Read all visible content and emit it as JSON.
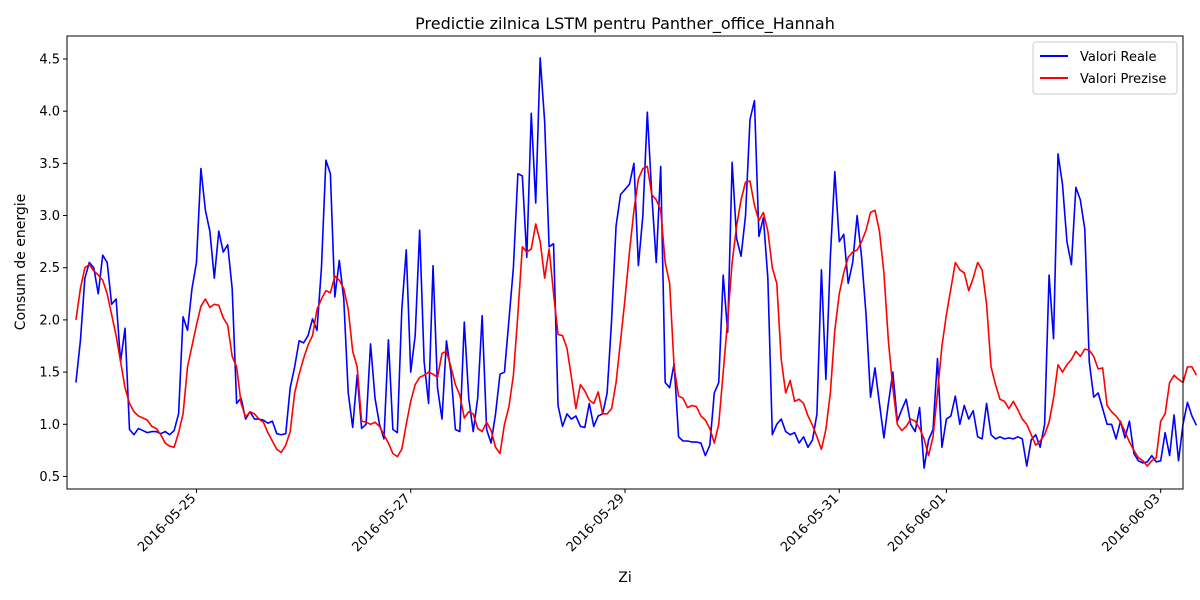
{
  "chart_data": {
    "type": "line",
    "title": "Predictie zilnica LSTM pentru Panther_office_Hannah",
    "xlabel": "Zi",
    "ylabel": "Consum de energie",
    "xlim": [
      "2016-05-23T19:00",
      "2016-06-03T05:00"
    ],
    "ylim": [
      0.38,
      4.72
    ],
    "yticks": [
      0.5,
      1.0,
      1.5,
      2.0,
      2.5,
      3.0,
      3.5,
      4.0,
      4.5
    ],
    "xticks": [
      "2016-05-25",
      "2016-05-27",
      "2016-05-29",
      "2016-05-31",
      "2016-06-01",
      "2016-06-03"
    ],
    "x_start": "2016-05-23T21:00",
    "x_step_hours": 1,
    "grid": false,
    "legend_position": "top-right",
    "series": [
      {
        "name": "Valori Reale",
        "color": "#0000ff",
        "values": [
          1.4,
          1.8,
          2.4,
          2.55,
          2.5,
          2.25,
          2.62,
          2.55,
          2.15,
          2.2,
          1.6,
          1.92,
          0.95,
          0.9,
          0.96,
          0.94,
          0.92,
          0.93,
          0.93,
          0.91,
          0.93,
          0.9,
          0.94,
          1.1,
          2.03,
          1.9,
          2.3,
          2.55,
          3.45,
          3.05,
          2.85,
          2.4,
          2.85,
          2.65,
          2.72,
          2.3,
          1.2,
          1.25,
          1.05,
          1.12,
          1.05,
          1.05,
          1.04,
          1.01,
          1.03,
          0.91,
          0.9,
          0.91,
          1.35,
          1.55,
          1.8,
          1.78,
          1.85,
          2.01,
          1.9,
          2.5,
          3.53,
          3.4,
          2.22,
          2.57,
          2.2,
          1.3,
          0.97,
          1.47,
          0.96,
          1.0,
          1.77,
          1.25,
          1.0,
          0.86,
          1.81,
          0.95,
          0.92,
          2.1,
          2.67,
          1.5,
          1.85,
          2.86,
          1.6,
          1.2,
          2.52,
          1.35,
          1.05,
          1.8,
          1.5,
          0.95,
          0.93,
          1.98,
          1.25,
          0.93,
          1.25,
          2.04,
          0.95,
          0.82,
          1.1,
          1.48,
          1.5,
          2.0,
          2.5,
          3.4,
          3.38,
          2.6,
          3.98,
          3.12,
          4.51,
          3.9,
          2.7,
          2.73,
          1.18,
          0.98,
          1.1,
          1.05,
          1.08,
          0.98,
          0.97,
          1.2,
          0.98,
          1.08,
          1.1,
          1.3,
          2.0,
          2.9,
          3.2,
          3.25,
          3.3,
          3.5,
          2.52,
          3.0,
          3.99,
          3.2,
          2.55,
          3.47,
          1.4,
          1.35,
          1.58,
          0.88,
          0.84,
          0.84,
          0.83,
          0.83,
          0.82,
          0.7,
          0.8,
          1.3,
          1.4,
          2.43,
          1.88,
          3.51,
          2.78,
          2.61,
          3.0,
          3.92,
          4.1,
          2.8,
          2.98,
          2.4,
          0.9,
          1.0,
          1.05,
          0.93,
          0.9,
          0.92,
          0.82,
          0.88,
          0.78,
          0.85,
          1.1,
          2.48,
          1.43,
          2.6,
          3.42,
          2.75,
          2.82,
          2.35,
          2.55,
          3.0,
          2.6,
          2.05,
          1.26,
          1.54,
          1.2,
          0.87,
          1.2,
          1.5,
          1.03,
          1.14,
          1.24,
          1.0,
          0.93,
          1.16,
          0.58,
          0.85,
          0.95,
          1.63,
          0.78,
          1.05,
          1.08,
          1.27,
          1.0,
          1.18,
          1.05,
          1.13,
          0.88,
          0.86,
          1.2,
          0.9,
          0.86,
          0.88,
          0.86,
          0.87,
          0.86,
          0.88,
          0.86,
          0.6,
          0.85,
          0.9,
          0.78,
          1.0,
          2.43,
          1.82,
          3.59,
          3.3,
          2.75,
          2.53,
          3.27,
          3.15,
          2.87,
          1.6,
          1.26,
          1.3,
          1.15,
          1.0,
          1.0,
          0.86,
          1.03,
          0.87,
          1.03,
          0.72,
          0.65,
          0.63,
          0.64,
          0.7,
          0.64,
          0.65,
          0.92,
          0.7,
          1.09,
          0.65,
          1.0,
          1.21,
          1.08,
          0.99
        ]
      },
      {
        "name": "Valori Prezise",
        "color": "#ff0000",
        "values": [
          2.0,
          2.3,
          2.5,
          2.53,
          2.47,
          2.43,
          2.38,
          2.25,
          2.05,
          1.85,
          1.6,
          1.35,
          1.2,
          1.12,
          1.08,
          1.06,
          1.04,
          0.98,
          0.96,
          0.9,
          0.82,
          0.79,
          0.78,
          0.92,
          1.1,
          1.55,
          1.75,
          1.95,
          2.13,
          2.2,
          2.12,
          2.15,
          2.14,
          2.02,
          1.95,
          1.65,
          1.55,
          1.2,
          1.07,
          1.12,
          1.1,
          1.05,
          1.02,
          0.92,
          0.84,
          0.76,
          0.73,
          0.8,
          0.93,
          1.3,
          1.48,
          1.63,
          1.76,
          1.85,
          2.1,
          2.2,
          2.28,
          2.26,
          2.42,
          2.38,
          2.3,
          2.1,
          1.7,
          1.55,
          1.03,
          1.02,
          1.0,
          1.02,
          0.98,
          0.9,
          0.82,
          0.72,
          0.69,
          0.76,
          1.0,
          1.22,
          1.38,
          1.45,
          1.47,
          1.5,
          1.48,
          1.45,
          1.68,
          1.7,
          1.55,
          1.38,
          1.28,
          1.06,
          1.12,
          1.1,
          0.96,
          0.93,
          1.02,
          0.94,
          0.78,
          0.72,
          1.0,
          1.17,
          1.47,
          2.05,
          2.7,
          2.65,
          2.68,
          2.92,
          2.75,
          2.4,
          2.68,
          2.25,
          1.86,
          1.85,
          1.73,
          1.45,
          1.15,
          1.38,
          1.32,
          1.23,
          1.2,
          1.31,
          1.1,
          1.1,
          1.15,
          1.4,
          1.8,
          2.2,
          2.65,
          3.05,
          3.35,
          3.45,
          3.47,
          3.2,
          3.15,
          3.05,
          2.55,
          2.35,
          1.55,
          1.27,
          1.25,
          1.16,
          1.18,
          1.17,
          1.08,
          1.04,
          0.96,
          0.82,
          1.0,
          1.5,
          2.0,
          2.55,
          2.9,
          3.15,
          3.32,
          3.33,
          3.1,
          2.95,
          3.03,
          2.85,
          2.5,
          2.35,
          1.62,
          1.3,
          1.42,
          1.22,
          1.24,
          1.2,
          1.08,
          0.99,
          0.88,
          0.76,
          0.95,
          1.3,
          1.9,
          2.25,
          2.45,
          2.6,
          2.65,
          2.67,
          2.75,
          2.86,
          3.03,
          3.05,
          2.85,
          2.45,
          1.8,
          1.35,
          1.0,
          0.94,
          0.98,
          1.05,
          1.03,
          0.96,
          0.86,
          0.7,
          0.88,
          1.3,
          1.75,
          2.05,
          2.3,
          2.55,
          2.48,
          2.45,
          2.28,
          2.4,
          2.55,
          2.48,
          2.15,
          1.55,
          1.38,
          1.24,
          1.22,
          1.15,
          1.22,
          1.14,
          1.05,
          1.0,
          0.9,
          0.8,
          0.84,
          0.9,
          1.02,
          1.25,
          1.57,
          1.5,
          1.57,
          1.62,
          1.7,
          1.65,
          1.72,
          1.71,
          1.65,
          1.53,
          1.54,
          1.18,
          1.12,
          1.08,
          1.02,
          0.93,
          0.83,
          0.75,
          0.68,
          0.65,
          0.6,
          0.65,
          0.68,
          1.03,
          1.1,
          1.4,
          1.47,
          1.43,
          1.4,
          1.55,
          1.55,
          1.47
        ]
      }
    ]
  }
}
